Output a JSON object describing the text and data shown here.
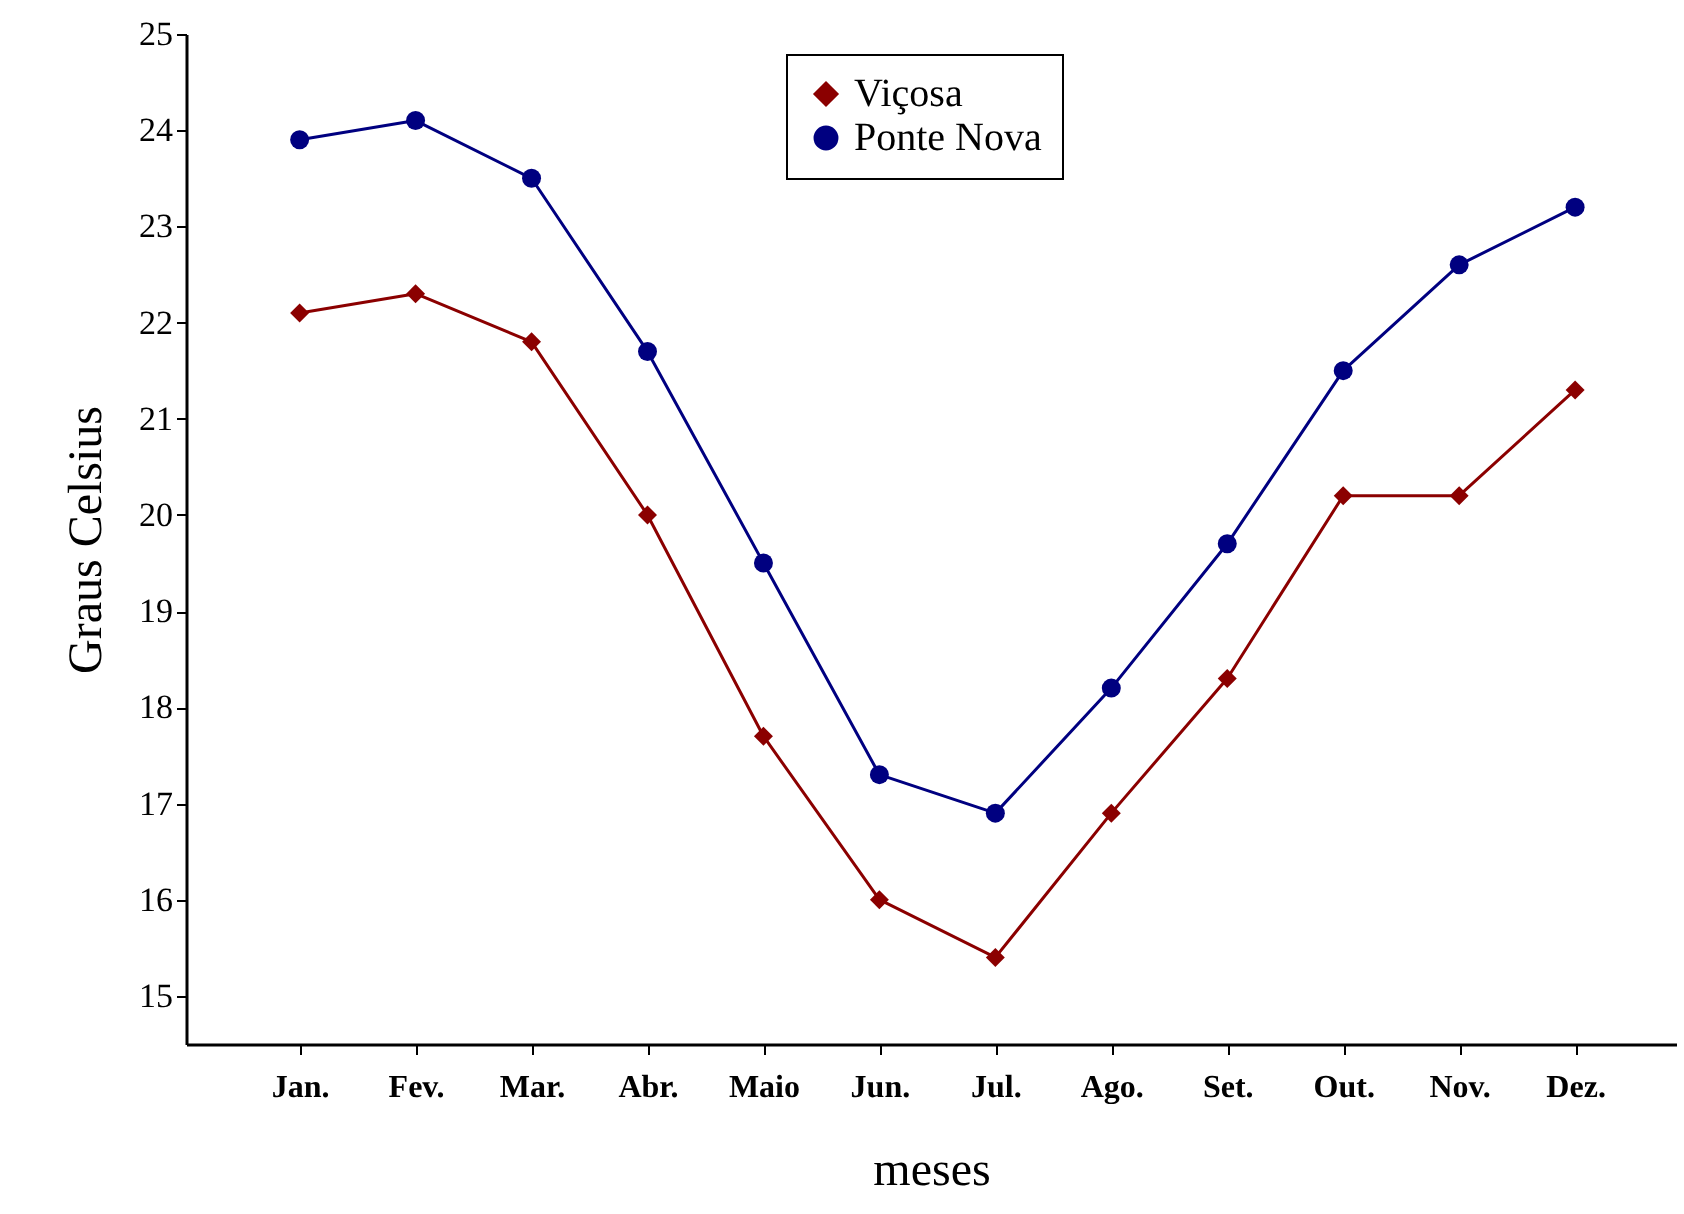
{
  "chart_data": {
    "type": "line",
    "xlabel": "meses",
    "ylabel": "Graus Celsius",
    "categories": [
      "Jan.",
      "Fev.",
      "Mar.",
      "Abr.",
      "Maio",
      "Jun.",
      "Jul.",
      "Ago.",
      "Set.",
      "Out.",
      "Nov.",
      "Dez."
    ],
    "series": [
      {
        "name": "Viçosa",
        "color": "#8b0000",
        "marker": "diamond",
        "values": [
          22.1,
          22.3,
          21.8,
          20.0,
          17.7,
          16.0,
          15.4,
          16.9,
          18.3,
          20.2,
          20.2,
          21.3
        ]
      },
      {
        "name": "Ponte Nova",
        "color": "#000080",
        "marker": "circle",
        "values": [
          23.9,
          24.1,
          23.5,
          21.7,
          19.5,
          17.3,
          16.9,
          18.2,
          19.7,
          21.5,
          22.6,
          23.2
        ]
      }
    ],
    "ylim": [
      14.5,
      25
    ],
    "yticks": [
      15,
      16,
      17,
      18,
      19,
      20,
      21,
      22,
      23,
      24,
      25
    ],
    "grid": false,
    "legend": "top",
    "line_style": "solid"
  }
}
